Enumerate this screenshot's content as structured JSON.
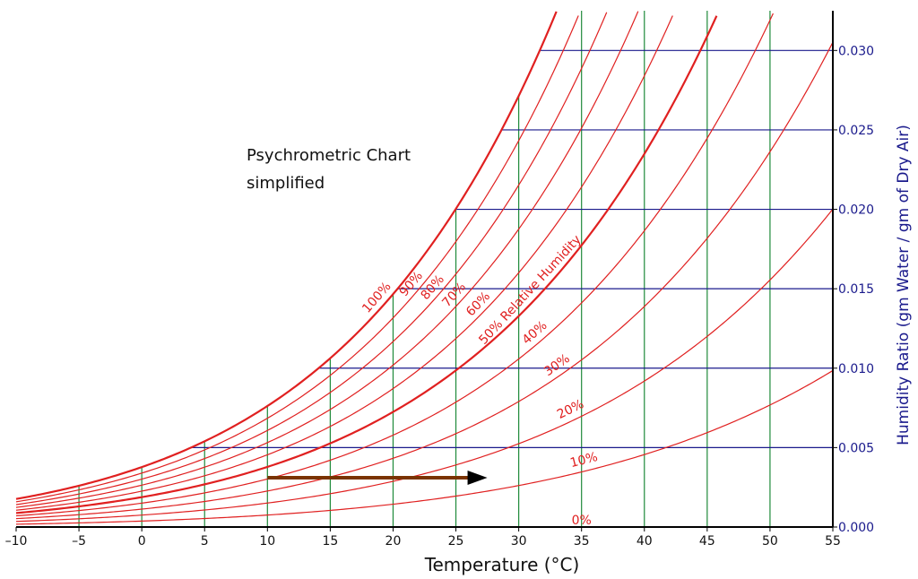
{
  "chart_data": {
    "type": "line",
    "title": "Psychrometric Chart",
    "subtitle": "simplified",
    "xlabel": "Temperature (°C)",
    "ylabel": "Humidity Ratio (gm Water / gm of Dry Air)",
    "xlim": [
      -10,
      55
    ],
    "ylim": [
      0,
      0.0325
    ],
    "x_ticks": [
      "–10",
      "–5",
      "0",
      "5",
      "10",
      "15",
      "20",
      "25",
      "30",
      "35",
      "40",
      "45",
      "50",
      "55"
    ],
    "y_ticks": [
      "0.000",
      "0.005",
      "0.010",
      "0.015",
      "0.020",
      "0.025",
      "0.030"
    ],
    "relative_humidity_curves": [
      10,
      20,
      30,
      40,
      50,
      60,
      70,
      80,
      90,
      100
    ],
    "bold_curves": [
      50,
      100
    ],
    "rh_labels": [
      {
        "rh": 100,
        "text": "100%"
      },
      {
        "rh": 90,
        "text": "90%"
      },
      {
        "rh": 80,
        "text": "80%"
      },
      {
        "rh": 70,
        "text": "70%"
      },
      {
        "rh": 60,
        "text": "60%"
      },
      {
        "rh": 50,
        "text": "50% Relative Humidity"
      },
      {
        "rh": 40,
        "text": "40%"
      },
      {
        "rh": 30,
        "text": "30%"
      },
      {
        "rh": 20,
        "text": "20%"
      },
      {
        "rh": 10,
        "text": "10%"
      },
      {
        "rh": 0,
        "text": "0%"
      }
    ],
    "arrow": {
      "from": [
        10,
        0.0031
      ],
      "to": [
        27.5,
        0.0031
      ]
    },
    "colors": {
      "rh": "#e02020",
      "temperature_lines": "#1f8a3a",
      "humidity_lines": "#1a1a8c",
      "arrow_shaft": "#7a3300",
      "arrow_head": "#000000",
      "axis": "#000000"
    }
  }
}
